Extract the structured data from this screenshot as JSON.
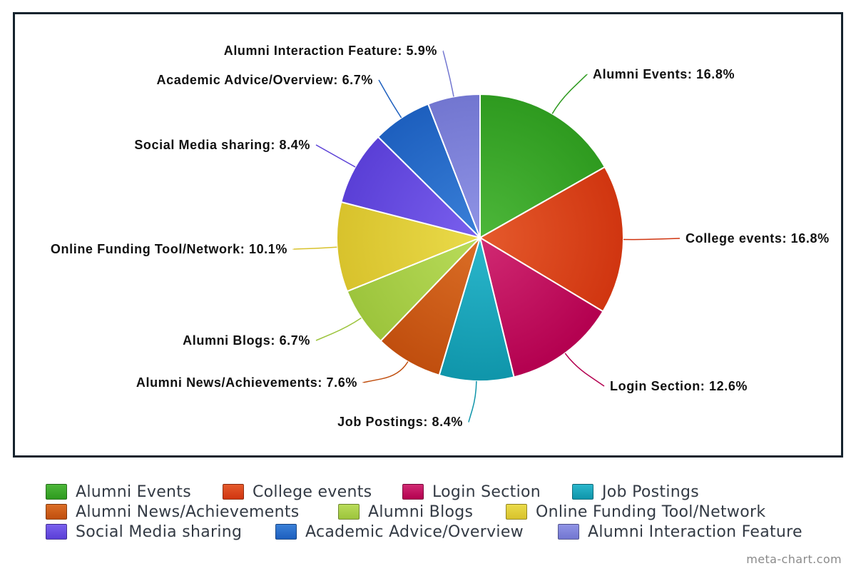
{
  "chart_data": {
    "type": "pie",
    "slices": [
      {
        "name": "Alumni Events",
        "value": 16.8,
        "label": "Alumni Events: 16.8%",
        "color": "#2e9a1f",
        "light": "#4db73a"
      },
      {
        "name": "College events",
        "value": 16.8,
        "label": "College events: 16.8%",
        "color": "#d03510",
        "light": "#e55a2c"
      },
      {
        "name": "Login Section",
        "value": 12.6,
        "label": "Login Section: 12.6%",
        "color": "#b3004f",
        "light": "#d12a73"
      },
      {
        "name": "Job Postings",
        "value": 8.4,
        "label": "Job Postings: 8.4%",
        "color": "#0f95aa",
        "light": "#2bb7cc"
      },
      {
        "name": "Alumni News/Achievements",
        "value": 7.6,
        "label": "Alumni News/Achievements: 7.6%",
        "color": "#c04e0e",
        "light": "#db6e26"
      },
      {
        "name": "Alumni Blogs",
        "value": 6.7,
        "label": "Alumni Blogs: 6.7%",
        "color": "#9cc43c",
        "light": "#b9dc5a"
      },
      {
        "name": "Online Funding Tool/Network",
        "value": 10.1,
        "label": "Online Funding Tool/Network: 10.1%",
        "color": "#d8c22c",
        "light": "#eadb4a"
      },
      {
        "name": "Social Media sharing",
        "value": 8.4,
        "label": "Social Media sharing: 8.4%",
        "color": "#5a3fd6",
        "light": "#7a60ee"
      },
      {
        "name": "Academic Advice/Overview",
        "value": 6.7,
        "label": "Academic Advice/Overview: 6.7%",
        "color": "#1d5fbe",
        "light": "#3a80d8"
      },
      {
        "name": "Alumni Interaction Feature",
        "value": 5.9,
        "label": "Alumni Interaction Feature: 5.9%",
        "color": "#7276d0",
        "light": "#9094e6"
      }
    ],
    "start": "top",
    "direction": "clockwise",
    "legend_position": "bottom"
  },
  "credit": "meta-chart.com"
}
